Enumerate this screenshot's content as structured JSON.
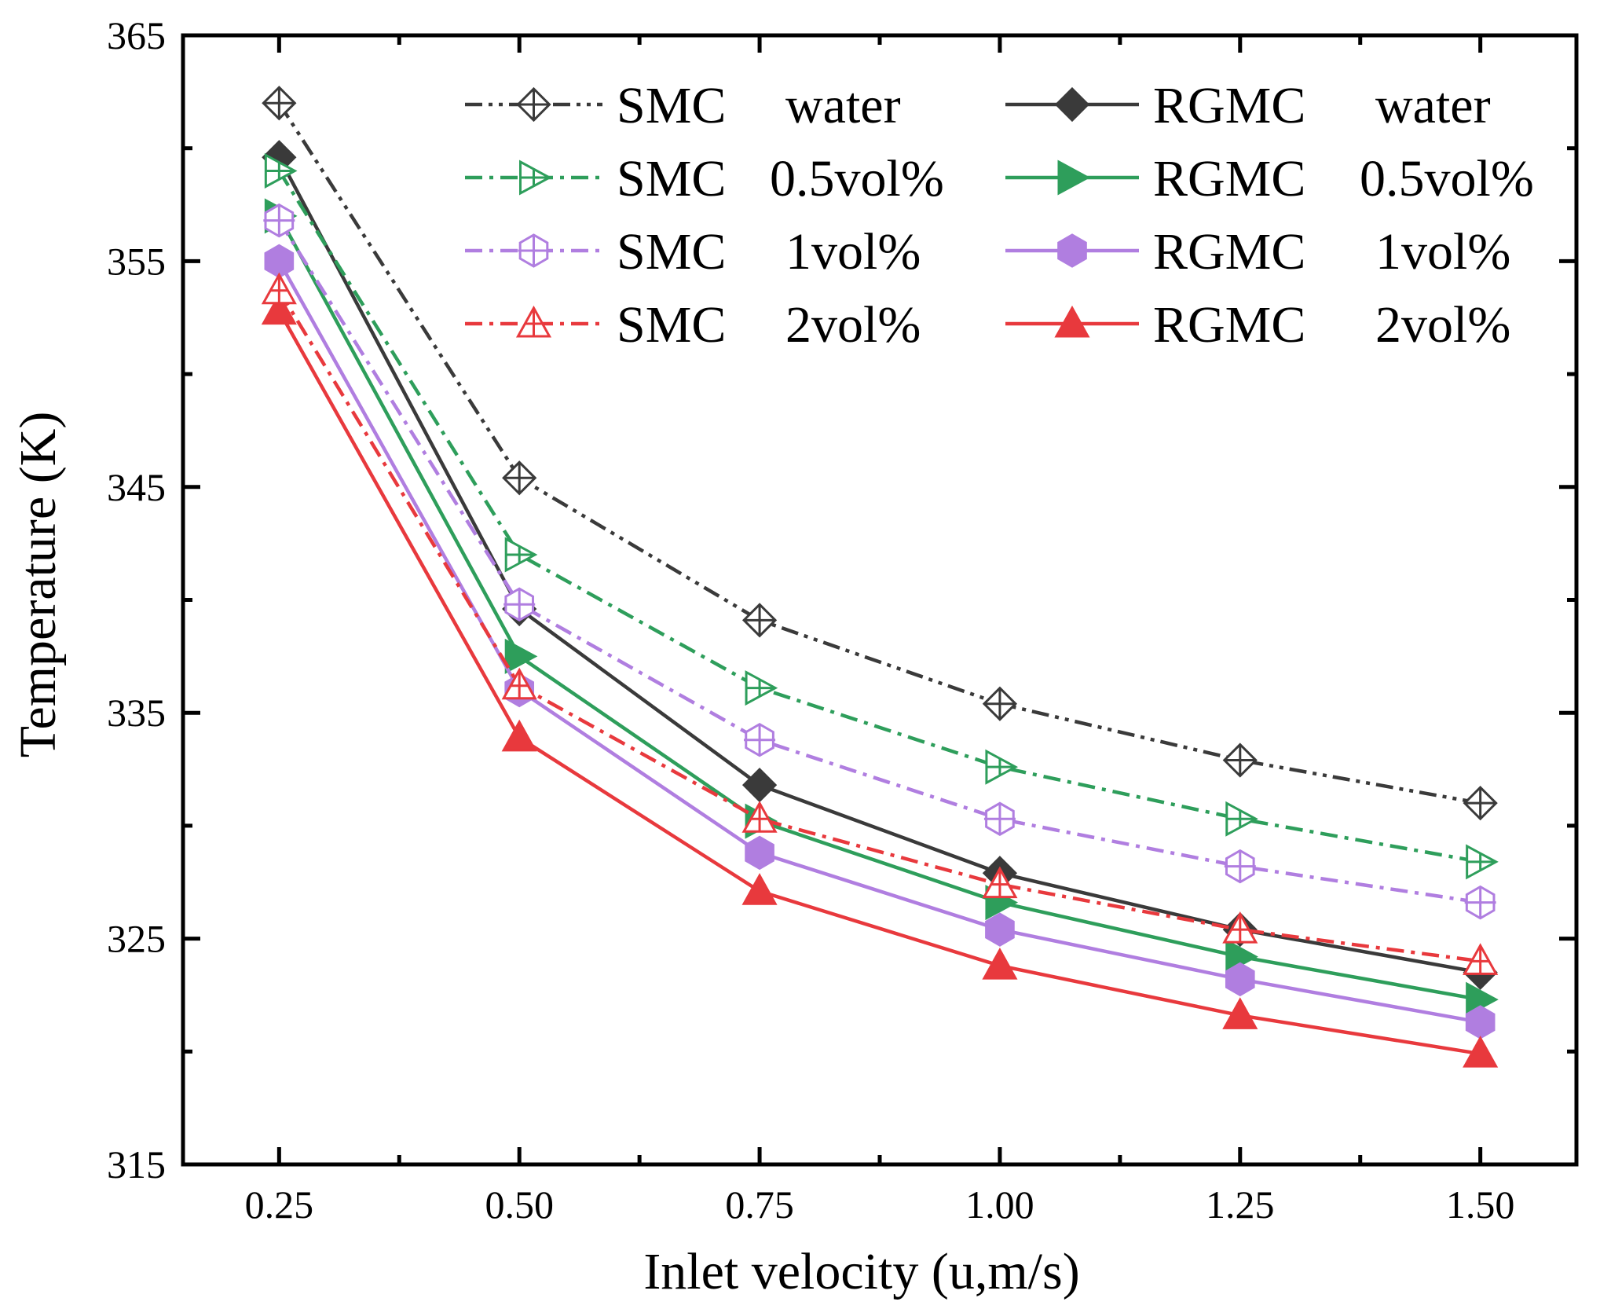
{
  "chart_data": {
    "type": "line",
    "title": "",
    "xlabel": "Inlet velocity (u,m/s)",
    "ylabel": "Temperature (K)",
    "x": [
      0.25,
      0.5,
      0.75,
      1.0,
      1.25,
      1.5
    ],
    "x_tick_labels": [
      "0.25",
      "0.50",
      "0.75",
      "1.00",
      "1.25",
      "1.50"
    ],
    "xlim": [
      0.15,
      1.6
    ],
    "ylim": [
      315,
      365
    ],
    "y_ticks": [
      315,
      325,
      335,
      345,
      355,
      365
    ],
    "y_tick_labels": [
      "315",
      "325",
      "335",
      "345",
      "355",
      "365"
    ],
    "grid": false,
    "legend_position": "top-right",
    "series": [
      {
        "name": "SMC water",
        "legend_left": "SMC",
        "legend_right": "water",
        "color": "#3a3a3a",
        "dash": "dashdotdot",
        "marker": "diamond",
        "filled": false,
        "values": [
          362.0,
          345.4,
          339.1,
          335.4,
          332.9,
          331.0
        ]
      },
      {
        "name": "SMC 0.5vol%",
        "legend_left": "SMC",
        "legend_right": "0.5vol%",
        "color": "#2e9e5b",
        "dash": "dashdot",
        "marker": "triangle-right",
        "filled": false,
        "values": [
          359.0,
          342.0,
          336.1,
          332.6,
          330.3,
          328.4
        ]
      },
      {
        "name": "SMC 1vol%",
        "legend_left": "SMC",
        "legend_right": "1vol%",
        "color": "#b07ee0",
        "dash": "dashdot",
        "marker": "hexagon",
        "filled": false,
        "values": [
          356.8,
          339.8,
          333.8,
          330.3,
          328.2,
          326.6
        ]
      },
      {
        "name": "SMC 2vol%",
        "legend_left": "SMC",
        "legend_right": "2vol%",
        "color": "#e8393d",
        "dash": "dashdot",
        "marker": "triangle-up",
        "filled": false,
        "values": [
          353.7,
          336.2,
          330.3,
          327.4,
          325.4,
          324.0
        ]
      },
      {
        "name": "RGMC water",
        "legend_left": "RGMC",
        "legend_right": "water",
        "color": "#3a3a3a",
        "dash": "solid",
        "marker": "diamond",
        "filled": true,
        "values": [
          359.6,
          339.6,
          331.8,
          327.9,
          325.4,
          323.5
        ]
      },
      {
        "name": "RGMC 0.5vol%",
        "legend_left": "RGMC",
        "legend_right": "0.5vol%",
        "color": "#2e9e5b",
        "dash": "solid",
        "marker": "triangle-right",
        "filled": true,
        "values": [
          357.0,
          337.5,
          330.2,
          326.6,
          324.2,
          322.3
        ]
      },
      {
        "name": "RGMC 1vol%",
        "legend_left": "RGMC",
        "legend_right": "1vol%",
        "color": "#b07ee0",
        "dash": "solid",
        "marker": "hexagon",
        "filled": true,
        "values": [
          355.0,
          336.0,
          328.8,
          325.4,
          323.2,
          321.3
        ]
      },
      {
        "name": "RGMC 2vol%",
        "legend_left": "RGMC",
        "legend_right": "2vol%",
        "color": "#e8393d",
        "dash": "solid",
        "marker": "triangle-up",
        "filled": true,
        "values": [
          352.8,
          333.9,
          327.1,
          323.8,
          321.6,
          319.9
        ]
      }
    ]
  }
}
